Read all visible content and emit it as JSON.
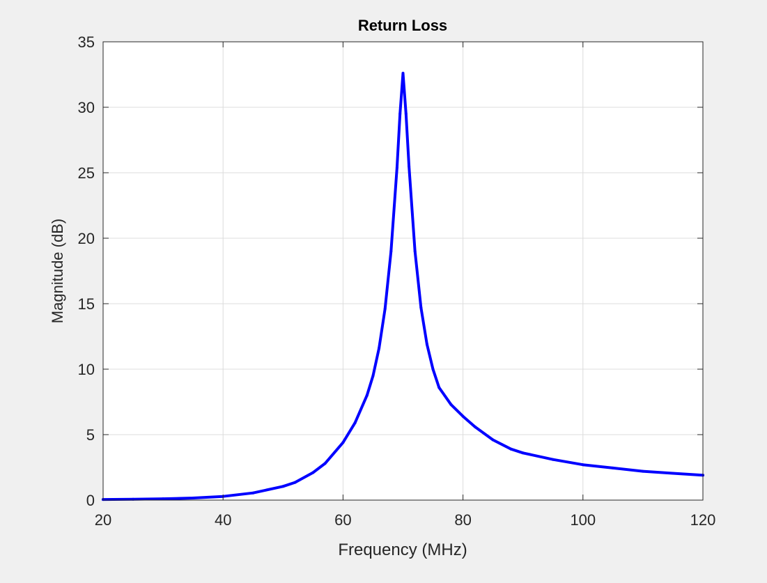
{
  "chart_data": {
    "type": "line",
    "title": "Return Loss",
    "xlabel": "Frequency (MHz)",
    "ylabel": "Magnitude (dB)",
    "xlim": [
      20,
      120
    ],
    "ylim": [
      0,
      35
    ],
    "xticks": [
      20,
      40,
      60,
      80,
      100,
      120
    ],
    "yticks": [
      0,
      5,
      10,
      15,
      20,
      25,
      30,
      35
    ],
    "grid": true,
    "series": [
      {
        "color": "#0000ff",
        "x": [
          20,
          25,
          30,
          35,
          40,
          45,
          50,
          52,
          55,
          57,
          60,
          62,
          64,
          65,
          66,
          67,
          68,
          69,
          69.5,
          70,
          70.5,
          71,
          72,
          73,
          74,
          75,
          76,
          78,
          80,
          82,
          85,
          88,
          90,
          95,
          100,
          105,
          110,
          115,
          120
        ],
        "y": [
          0.05,
          0.07,
          0.1,
          0.16,
          0.28,
          0.55,
          1.05,
          1.35,
          2.1,
          2.8,
          4.4,
          5.9,
          8.0,
          9.5,
          11.6,
          14.6,
          19.0,
          25.4,
          29.5,
          32.6,
          29.5,
          25.5,
          19.0,
          14.7,
          11.9,
          10.0,
          8.6,
          7.3,
          6.4,
          5.6,
          4.6,
          3.9,
          3.6,
          3.1,
          2.7,
          2.45,
          2.2,
          2.05,
          1.9
        ]
      }
    ]
  }
}
